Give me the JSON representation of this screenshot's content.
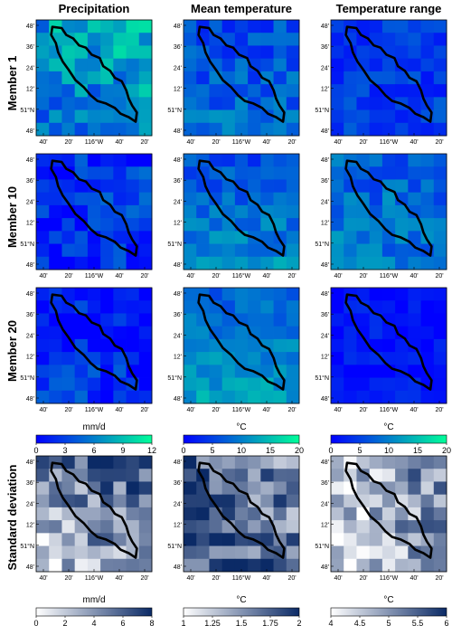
{
  "columns": [
    "Precipitation",
    "Mean temperature",
    "Temperature range"
  ],
  "rows": [
    "Member 1",
    "Member 10",
    "Member 20",
    "Standard deviation"
  ],
  "lat_ticks": [
    "48'",
    "36'",
    "24'",
    "12'",
    "51°N",
    "48'"
  ],
  "lon_ticks": [
    "40'",
    "20'",
    "116°W",
    "40'",
    "20'"
  ],
  "colorbars": {
    "precipitation": {
      "unit": "mm/d",
      "ticks": [
        "0",
        "3",
        "6",
        "9",
        "12"
      ],
      "colors": [
        "#0000ff",
        "#00ff99"
      ]
    },
    "mean_temperature": {
      "unit": "°C",
      "ticks": [
        "0",
        "5",
        "10",
        "15",
        "20"
      ],
      "colors": [
        "#0000ff",
        "#00ff99"
      ]
    },
    "temperature_range": {
      "unit": "°C",
      "ticks": [
        "0",
        "5",
        "10",
        "15",
        "20"
      ],
      "colors": [
        "#0000ff",
        "#00ff99"
      ]
    },
    "sd_precipitation": {
      "unit": "mm/d",
      "ticks": [
        "0",
        "2",
        "4",
        "6",
        "8"
      ],
      "colors": [
        "#ffffff",
        "#0b2a66"
      ]
    },
    "sd_mean_temperature": {
      "unit": "°C",
      "ticks": [
        "1",
        "1.25",
        "1.5",
        "1.75",
        "2"
      ],
      "colors": [
        "#ffffff",
        "#0b2a66"
      ]
    },
    "sd_temperature_range": {
      "unit": "°C",
      "ticks": [
        "4",
        "4.5",
        "5",
        "5.5",
        "6"
      ],
      "colors": [
        "#ffffff",
        "#0b2a66"
      ]
    }
  }
}
